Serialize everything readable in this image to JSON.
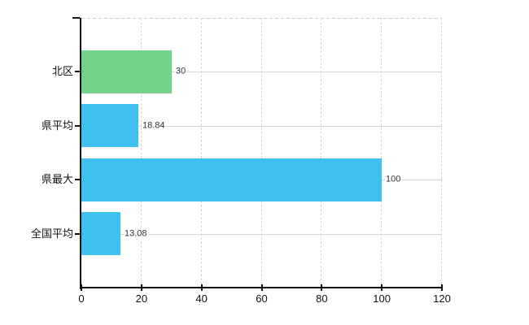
{
  "chart_data": {
    "type": "bar",
    "orientation": "horizontal",
    "title": "",
    "xlabel": "",
    "ylabel": "",
    "categories": [
      "北区",
      "県平均",
      "県最大",
      "全国平均"
    ],
    "values": [
      30,
      18.84,
      100,
      13.08
    ],
    "value_labels": [
      "30",
      "18.84",
      "100",
      "13.08"
    ],
    "bar_colors": [
      "#74d189",
      "#3fc1ef",
      "#3fc1ef",
      "#3fc1ef"
    ],
    "xlim": [
      0,
      120
    ],
    "x_ticks": [
      "0",
      "20",
      "40",
      "60",
      "80",
      "100",
      "120"
    ],
    "x_tick_values": [
      0,
      20,
      40,
      60,
      80,
      100,
      120
    ],
    "grid": "on",
    "legend": "none"
  },
  "colors": {
    "background": "#ffffff",
    "axis": "#111111",
    "grid_vertical": "#d7d7d7",
    "grid_horizontal": "#d6d6d6",
    "plot_border_dashed": "#cccccc",
    "category_label": "#111111",
    "tick_label": "#111111",
    "value_label": "#333333",
    "green_bar": "#74d189",
    "blue_bar": "#3fc1ef"
  }
}
